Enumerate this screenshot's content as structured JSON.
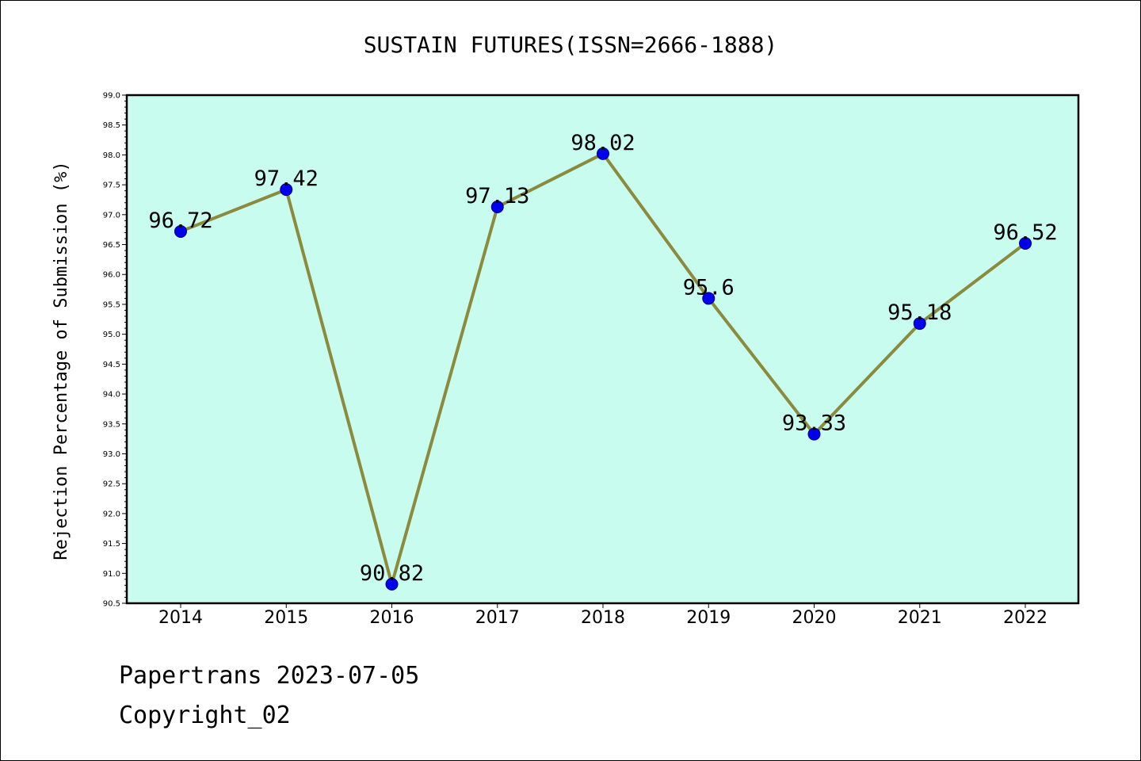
{
  "chart_data": {
    "type": "line",
    "title": "SUSTAIN FUTURES(ISSN=2666-1888)",
    "xlabel": "",
    "ylabel": "Rejection Percentage of Submission (%)",
    "categories": [
      "2014",
      "2015",
      "2016",
      "2017",
      "2018",
      "2019",
      "2020",
      "2021",
      "2022"
    ],
    "series": [
      {
        "values": [
          96.72,
          97.42,
          90.82,
          97.13,
          98.02,
          95.6,
          93.33,
          95.18,
          96.52
        ],
        "data_labels": [
          "96.72",
          "97.42",
          "90.82",
          "97.13",
          "98.02",
          "95.6",
          "93.33",
          "95.18",
          "96.52"
        ]
      }
    ],
    "ylim": [
      90.5,
      99.0
    ],
    "yticks": [
      "90.5",
      "91.0",
      "91.5",
      "92.0",
      "92.5",
      "93.0",
      "93.5",
      "94.0",
      "94.5",
      "95.0",
      "95.5",
      "96.0",
      "96.5",
      "97.0",
      "97.5",
      "98.0",
      "98.5",
      "99.0"
    ],
    "grid": false,
    "legend": "none",
    "colors": {
      "plot_background": "#c8fcef",
      "line": "#8c8a3c",
      "marker": "#0000ee"
    }
  },
  "footer": {
    "line1": "Papertrans 2023-07-05",
    "line2": "Copyright_02"
  }
}
